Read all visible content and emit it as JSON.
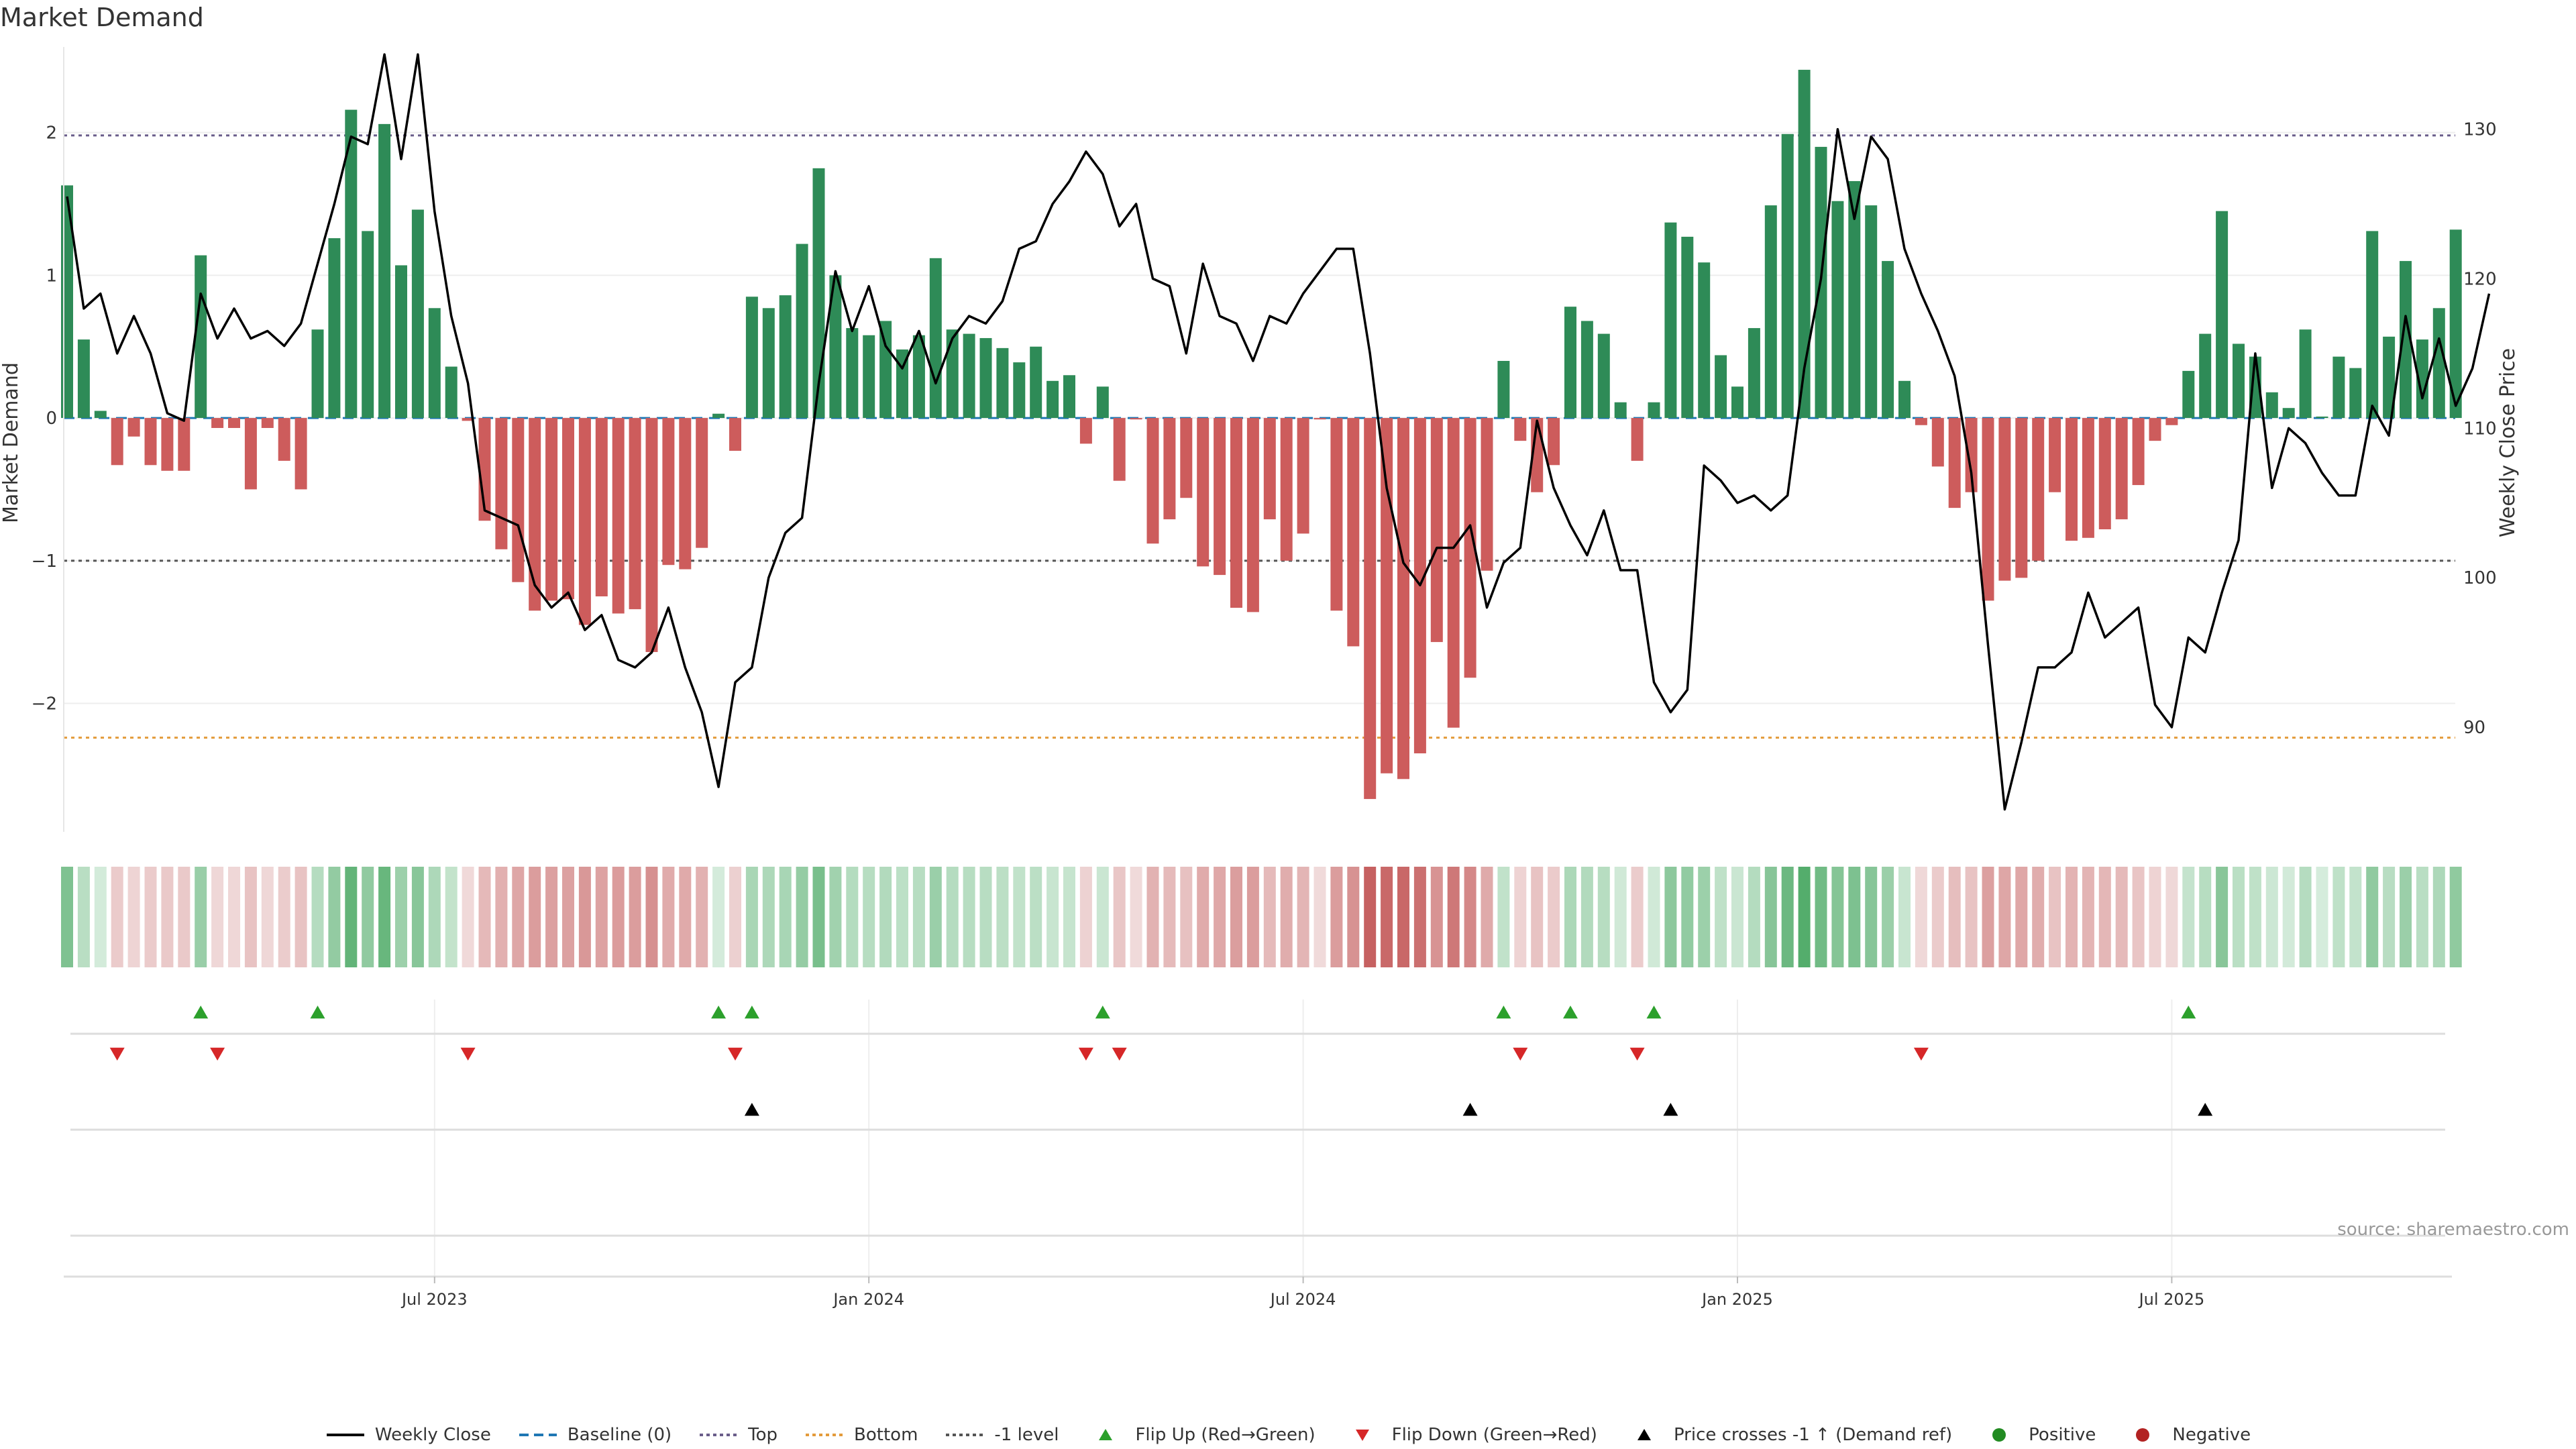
{
  "chart_data": {
    "type": "bar",
    "title": "Market Demand",
    "ylabel_left": "Market Demand",
    "ylabel_right": "Weekly Close Price",
    "source": "source: sharemaestro.com",
    "ylim_left": [
      -2.9,
      2.6
    ],
    "yticks_left": [
      -2,
      -1,
      0,
      1,
      2
    ],
    "yticklabels_left": [
      "−2",
      "−1",
      "0",
      "1",
      "2"
    ],
    "ylim_right": [
      83.0,
      135.5
    ],
    "yticks_right": [
      90,
      100,
      110,
      120,
      130
    ],
    "x_ticks": [
      {
        "week": 22,
        "label": "Jul 2023"
      },
      {
        "week": 48,
        "label": "Jan 2024"
      },
      {
        "week": 74,
        "label": "Jul 2024"
      },
      {
        "week": 100,
        "label": "Jan 2025"
      },
      {
        "week": 126,
        "label": "Jul 2025"
      }
    ],
    "reference_lines": {
      "top": 1.98,
      "bottom": -2.24,
      "minus_one": -1.0
    },
    "demand": [
      1.63,
      0.55,
      0.05,
      -0.33,
      -0.13,
      -0.33,
      -0.37,
      -0.37,
      1.14,
      -0.07,
      -0.07,
      -0.5,
      -0.07,
      -0.3,
      -0.5,
      0.62,
      1.26,
      2.16,
      1.31,
      2.06,
      1.07,
      1.46,
      0.77,
      0.36,
      -0.02,
      -0.72,
      -0.92,
      -1.15,
      -1.35,
      -1.28,
      -1.27,
      -1.45,
      -1.25,
      -1.37,
      -1.34,
      -1.64,
      -1.03,
      -1.06,
      -0.91,
      0.03,
      -0.23,
      0.85,
      0.77,
      0.86,
      1.22,
      1.75,
      1.0,
      0.63,
      0.58,
      0.68,
      0.48,
      0.58,
      1.12,
      0.62,
      0.59,
      0.56,
      0.49,
      0.39,
      0.5,
      0.26,
      0.3,
      -0.18,
      0.22,
      -0.44,
      -0.01,
      -0.88,
      -0.71,
      -0.56,
      -1.04,
      -1.1,
      -1.33,
      -1.36,
      -0.71,
      -1.0,
      -0.81,
      -0.01,
      -1.35,
      -1.6,
      -2.67,
      -2.49,
      -2.53,
      -2.35,
      -1.57,
      -2.17,
      -1.82,
      -1.07,
      0.4,
      -0.16,
      -0.52,
      -0.33,
      0.78,
      0.68,
      0.59,
      0.11,
      -0.3,
      0.11,
      1.37,
      1.27,
      1.09,
      0.44,
      0.22,
      0.63,
      1.49,
      1.99,
      2.44,
      1.9,
      1.52,
      1.66,
      1.49,
      1.1,
      0.26,
      -0.05,
      -0.34,
      -0.63,
      -0.52,
      -1.28,
      -1.14,
      -1.12,
      -1.0,
      -0.52,
      -0.86,
      -0.84,
      -0.78,
      -0.71,
      -0.47,
      -0.16,
      -0.05,
      0.33,
      0.59,
      1.45,
      0.52,
      0.43,
      0.18,
      0.07,
      0.62,
      0.01,
      0.43,
      0.35,
      1.31,
      0.57,
      1.1,
      0.55,
      0.77,
      1.32
    ],
    "weekly_close": [
      125.5,
      118,
      119,
      115,
      117.5,
      115,
      111,
      110.5,
      119,
      116,
      118,
      116,
      116.5,
      115.5,
      117,
      121,
      125,
      129.5,
      129,
      135,
      128,
      135,
      124.5,
      117.5,
      113,
      104.5,
      104,
      103.5,
      99.5,
      98,
      99,
      96.5,
      97.5,
      94.5,
      94,
      95,
      98,
      94,
      91,
      86,
      93,
      94,
      100,
      103,
      104,
      113,
      120.5,
      116.5,
      119.5,
      115.5,
      114,
      116.5,
      113,
      116,
      117.5,
      117,
      118.5,
      122,
      122.5,
      125,
      126.5,
      128.5,
      127,
      123.5,
      125,
      120,
      119.5,
      115,
      121,
      117.5,
      117,
      114.5,
      117.5,
      117,
      119,
      120.5,
      122,
      122,
      115,
      106,
      101,
      99.5,
      102,
      102,
      103.5,
      98,
      101,
      102,
      110.5,
      106,
      103.5,
      101.5,
      104.5,
      100.5,
      100.5,
      93,
      91,
      92.5,
      107.5,
      106.5,
      105,
      105.5,
      104.5,
      105.5,
      114,
      120,
      130,
      124,
      129.5,
      128,
      122,
      119,
      116.5,
      113.5,
      107,
      95.5,
      84.5,
      89,
      94,
      94,
      95,
      99,
      96,
      97,
      98,
      91.5,
      90,
      96,
      95,
      99,
      102.5,
      115,
      106,
      110,
      109,
      107,
      105.5,
      105.5,
      111.5,
      109.5,
      117.5,
      112,
      116,
      111.5,
      114,
      119
    ],
    "flip_up_weeks": [
      8,
      15,
      39,
      41,
      62,
      86,
      90,
      95,
      127
    ],
    "flip_down_weeks": [
      3,
      9,
      24,
      40,
      61,
      63,
      87,
      94,
      111
    ],
    "price_cross_weeks": [
      41,
      84,
      96,
      128
    ],
    "legend": [
      {
        "key": "weekly_close",
        "label": "Weekly Close"
      },
      {
        "key": "baseline",
        "label": "Baseline (0)"
      },
      {
        "key": "top",
        "label": "Top"
      },
      {
        "key": "bottom",
        "label": "Bottom"
      },
      {
        "key": "minus_one",
        "label": "-1 level"
      },
      {
        "key": "flip_up",
        "label": "Flip Up (Red→Green)"
      },
      {
        "key": "flip_down",
        "label": "Flip Down (Green→Red)"
      },
      {
        "key": "price_cross",
        "label": "Price crosses -1 ↑ (Demand ref)"
      },
      {
        "key": "positive",
        "label": "Positive"
      },
      {
        "key": "negative",
        "label": "Negative"
      }
    ]
  },
  "colors": {
    "positive": "#2e8b57",
    "negative": "#cd5c5c",
    "price_line": "#000000",
    "baseline": "#1f77b4",
    "top_line": "#6a5d8a",
    "bottom_line": "#e39b3b",
    "minus_one_line": "#555555",
    "flip_up": "#2ca02c",
    "flip_down": "#d62728",
    "price_cross": "#000000",
    "positive_dot": "#228b22",
    "negative_dot": "#b22222"
  }
}
